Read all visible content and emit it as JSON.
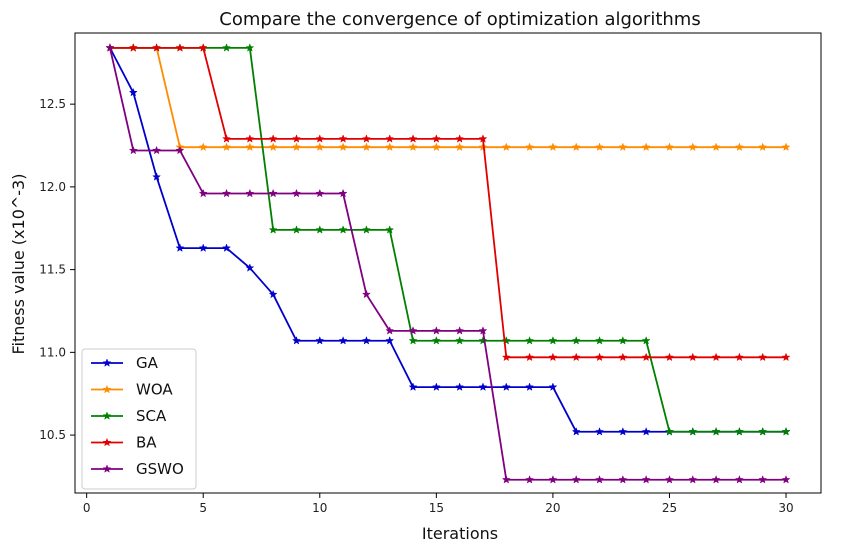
{
  "chart_data": {
    "type": "line",
    "title": "Compare the convergence of optimization algorithms",
    "xlabel": "Iterations",
    "ylabel": "Fitness value (x10^-3)",
    "xlim": [
      -0.5,
      31.5
    ],
    "ylim": [
      10.15,
      12.93
    ],
    "xticks": [
      0,
      5,
      10,
      15,
      20,
      25,
      30
    ],
    "yticks": [
      10.5,
      11.0,
      11.5,
      12.0,
      12.5
    ],
    "ytick_labels": [
      "10.5",
      "11.0",
      "11.5",
      "12.0",
      "12.5"
    ],
    "grid": false,
    "legend_position": "lower-left",
    "marker": "star",
    "x": [
      1,
      2,
      3,
      4,
      5,
      6,
      7,
      8,
      9,
      10,
      11,
      12,
      13,
      14,
      15,
      16,
      17,
      18,
      19,
      20,
      21,
      22,
      23,
      24,
      25,
      26,
      27,
      28,
      29,
      30
    ],
    "series": [
      {
        "name": "GA",
        "color": "#0000cc",
        "values": [
          12.84,
          12.57,
          12.06,
          11.63,
          11.63,
          11.63,
          11.51,
          11.35,
          11.07,
          11.07,
          11.07,
          11.07,
          11.07,
          10.79,
          10.79,
          10.79,
          10.79,
          10.79,
          10.79,
          10.79,
          10.52,
          10.52,
          10.52,
          10.52,
          10.52,
          10.52,
          10.52,
          10.52,
          10.52,
          10.52
        ]
      },
      {
        "name": "WOA",
        "color": "#ff8c00",
        "values": [
          12.84,
          12.84,
          12.84,
          12.24,
          12.24,
          12.24,
          12.24,
          12.24,
          12.24,
          12.24,
          12.24,
          12.24,
          12.24,
          12.24,
          12.24,
          12.24,
          12.24,
          12.24,
          12.24,
          12.24,
          12.24,
          12.24,
          12.24,
          12.24,
          12.24,
          12.24,
          12.24,
          12.24,
          12.24,
          12.24
        ]
      },
      {
        "name": "SCA",
        "color": "#008000",
        "values": [
          12.84,
          12.84,
          12.84,
          12.84,
          12.84,
          12.84,
          12.84,
          11.74,
          11.74,
          11.74,
          11.74,
          11.74,
          11.74,
          11.07,
          11.07,
          11.07,
          11.07,
          11.07,
          11.07,
          11.07,
          11.07,
          11.07,
          11.07,
          11.07,
          10.52,
          10.52,
          10.52,
          10.52,
          10.52,
          10.52
        ]
      },
      {
        "name": "BA",
        "color": "#e00000",
        "values": [
          12.84,
          12.84,
          12.84,
          12.84,
          12.84,
          12.29,
          12.29,
          12.29,
          12.29,
          12.29,
          12.29,
          12.29,
          12.29,
          12.29,
          12.29,
          12.29,
          12.29,
          10.97,
          10.97,
          10.97,
          10.97,
          10.97,
          10.97,
          10.97,
          10.97,
          10.97,
          10.97,
          10.97,
          10.97,
          10.97
        ]
      },
      {
        "name": "GSWO",
        "color": "#800080",
        "values": [
          12.84,
          12.22,
          12.22,
          12.22,
          11.96,
          11.96,
          11.96,
          11.96,
          11.96,
          11.96,
          11.96,
          11.35,
          11.13,
          11.13,
          11.13,
          11.13,
          11.13,
          10.23,
          10.23,
          10.23,
          10.23,
          10.23,
          10.23,
          10.23,
          10.23,
          10.23,
          10.23,
          10.23,
          10.23,
          10.23
        ]
      }
    ]
  }
}
